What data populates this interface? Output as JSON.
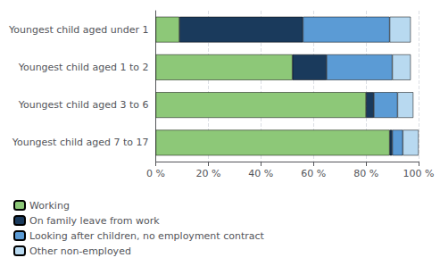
{
  "chart_data": {
    "type": "bar",
    "orientation": "horizontal",
    "stacked": true,
    "categories": [
      "Youngest child aged 7 to 17",
      "Youngest child aged 3 to 6",
      "Youngest child aged 1 to 2",
      "Youngest child aged under 1"
    ],
    "series": [
      {
        "name": "Working",
        "color": "#8dc878",
        "values": [
          89,
          80,
          52,
          9
        ]
      },
      {
        "name": "On family leave from work",
        "color": "#1a3a5c",
        "values": [
          1,
          3,
          13,
          47
        ]
      },
      {
        "name": "Looking after children, no employment contract",
        "color": "#5b9bd5",
        "values": [
          4,
          9,
          25,
          33
        ]
      },
      {
        "name": "Other non-employed",
        "color": "#b8d9f0",
        "values": [
          6,
          6,
          7,
          8
        ]
      }
    ],
    "xlim": [
      0,
      100
    ],
    "xticks": [
      {
        "value": 0,
        "label": "0 %"
      },
      {
        "value": 20,
        "label": "20 %"
      },
      {
        "value": 40,
        "label": "40 %"
      },
      {
        "value": 60,
        "label": "60 %"
      },
      {
        "value": 80,
        "label": "80 %"
      },
      {
        "value": 100,
        "label": "100 %"
      }
    ],
    "grid": true,
    "legend": "lower left"
  }
}
